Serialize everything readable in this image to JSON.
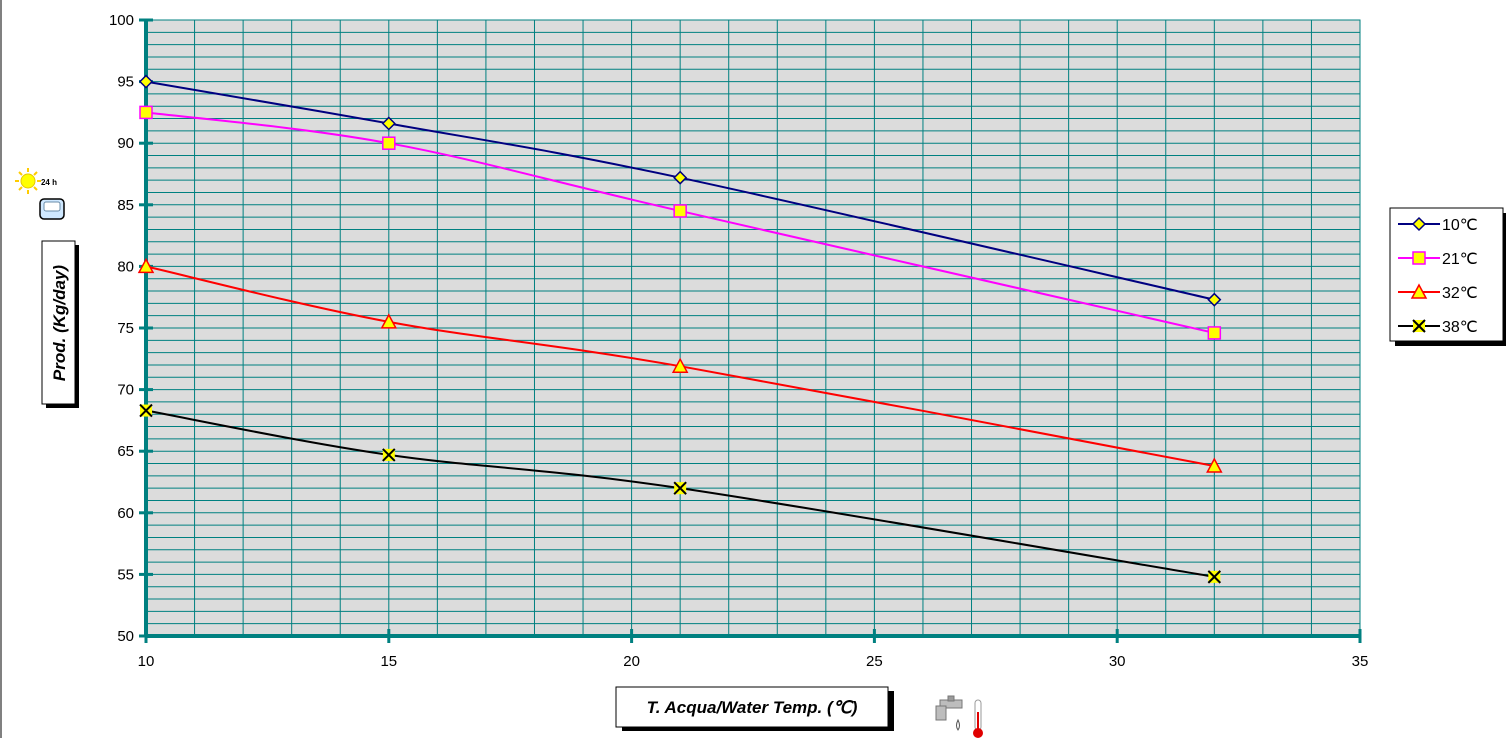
{
  "chart_data": {
    "type": "line",
    "title": "",
    "xlabel": "T. Acqua/Water Temp. (℃)",
    "ylabel": "Prod. (Kg/day)",
    "xlim": [
      10,
      35
    ],
    "ylim": [
      50,
      100
    ],
    "x_ticks": [
      "10",
      "15",
      "20",
      "25",
      "30",
      "35"
    ],
    "y_ticks": [
      "50",
      "55",
      "60",
      "65",
      "70",
      "75",
      "80",
      "85",
      "90",
      "95",
      "100"
    ],
    "x_minor_step": 1,
    "y_minor_step": 1,
    "grid": true,
    "legend_position": "right",
    "plot_background": "#dcdcdc",
    "grid_color": "#008080",
    "axis_color": "#008080",
    "x": [
      10,
      15,
      21,
      32
    ],
    "series": [
      {
        "name": "10℃",
        "values": [
          95,
          91.6,
          87.2,
          77.3
        ],
        "color": "#000080",
        "marker": "diamond",
        "marker_fill": "#ffff00"
      },
      {
        "name": "21℃",
        "values": [
          92.5,
          90,
          84.5,
          74.6
        ],
        "color": "#ff00ff",
        "marker": "square",
        "marker_fill": "#ffff00"
      },
      {
        "name": "32℃",
        "values": [
          80,
          75.5,
          71.9,
          63.8
        ],
        "color": "#ff0000",
        "marker": "triangle",
        "marker_fill": "#ffff00"
      },
      {
        "name": "38℃",
        "values": [
          68.3,
          64.7,
          62,
          54.8
        ],
        "color": "#000000",
        "marker": "x",
        "marker_fill": "#ffff00"
      }
    ]
  },
  "icons": {
    "ylabel_symbol": "sun-moon-ice-icon",
    "ylabel_symbol_text": "24 h",
    "xlabel_symbol": "faucet-thermometer-icon"
  }
}
